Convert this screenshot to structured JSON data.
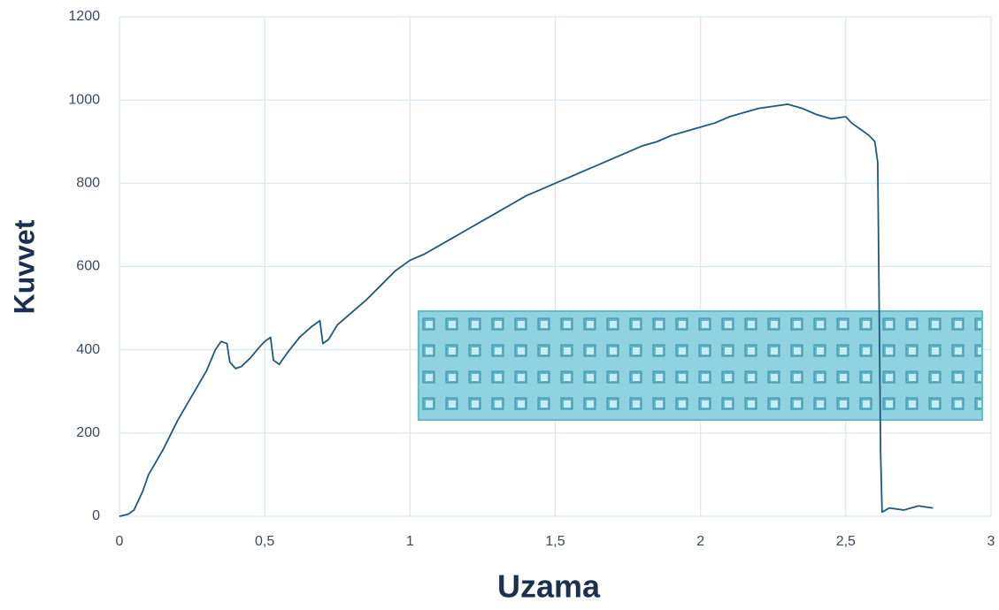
{
  "chart_data": {
    "type": "line",
    "x_label": "Uzama",
    "y_label": "Kuvvet",
    "x": [
      0,
      0.03,
      0.05,
      0.08,
      0.1,
      0.15,
      0.2,
      0.25,
      0.3,
      0.33,
      0.35,
      0.37,
      0.38,
      0.4,
      0.42,
      0.45,
      0.48,
      0.5,
      0.52,
      0.53,
      0.55,
      0.58,
      0.62,
      0.66,
      0.69,
      0.7,
      0.72,
      0.75,
      0.8,
      0.85,
      0.9,
      0.95,
      1.0,
      1.05,
      1.1,
      1.15,
      1.2,
      1.25,
      1.3,
      1.35,
      1.4,
      1.45,
      1.5,
      1.55,
      1.6,
      1.65,
      1.7,
      1.75,
      1.8,
      1.85,
      1.9,
      1.95,
      2.0,
      2.05,
      2.1,
      2.15,
      2.2,
      2.25,
      2.3,
      2.35,
      2.4,
      2.45,
      2.5,
      2.52,
      2.55,
      2.58,
      2.6,
      2.61,
      2.615,
      2.62,
      2.625,
      2.65,
      2.7,
      2.75,
      2.8
    ],
    "series": [
      {
        "color": "#1f5878",
        "values": [
          0,
          5,
          15,
          60,
          100,
          160,
          230,
          290,
          350,
          400,
          420,
          415,
          370,
          355,
          360,
          380,
          405,
          420,
          430,
          375,
          365,
          395,
          430,
          455,
          470,
          415,
          425,
          460,
          490,
          520,
          555,
          590,
          615,
          630,
          650,
          670,
          690,
          710,
          730,
          750,
          770,
          785,
          800,
          815,
          830,
          845,
          860,
          875,
          890,
          900,
          915,
          925,
          935,
          945,
          960,
          970,
          980,
          985,
          990,
          980,
          965,
          955,
          960,
          945,
          930,
          915,
          900,
          850,
          500,
          150,
          10,
          20,
          15,
          25,
          20
        ]
      }
    ],
    "xlim": [
      0,
      3
    ],
    "xticks": [
      0,
      {
        "value": 0.5,
        "label": "0,5"
      },
      1,
      {
        "value": 1.5,
        "label": "1,5"
      },
      2,
      {
        "value": 2.5,
        "label": "2,5"
      },
      3
    ],
    "ylim": [
      0,
      1200
    ],
    "yticks": [
      0,
      200,
      400,
      600,
      800,
      1000,
      1200
    ],
    "grid": true
  }
}
